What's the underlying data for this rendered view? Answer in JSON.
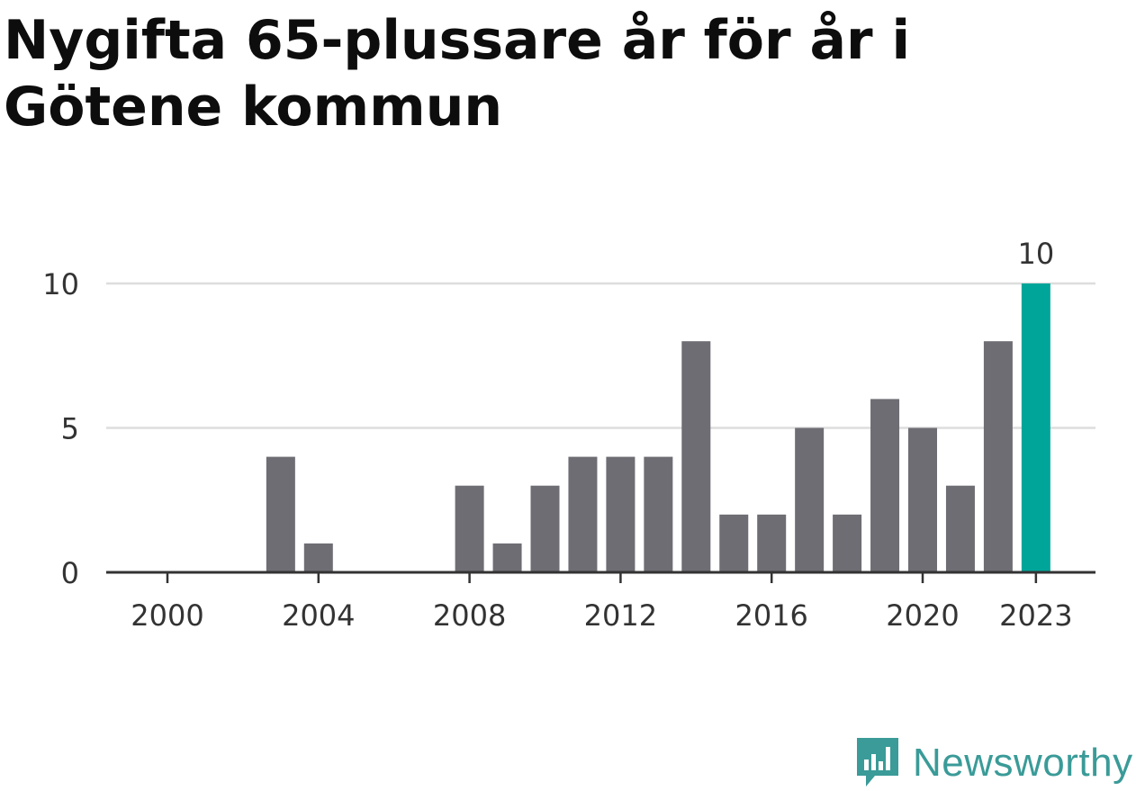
{
  "title": "Nygifta 65-plussare år för år i Götene kommun",
  "brand": "Newsworthy",
  "colors": {
    "bar": "#6e6d73",
    "highlight": "#00a59a",
    "grid": "#dddddd",
    "axis": "#333333",
    "brand": "#3a9b98"
  },
  "chart_data": {
    "type": "bar",
    "categories": [
      "2000",
      "2001",
      "2002",
      "2003",
      "2004",
      "2005",
      "2006",
      "2007",
      "2008",
      "2009",
      "2010",
      "2011",
      "2012",
      "2013",
      "2014",
      "2015",
      "2016",
      "2017",
      "2018",
      "2019",
      "2020",
      "2021",
      "2022",
      "2023"
    ],
    "values": [
      0,
      0,
      0,
      4,
      1,
      0,
      0,
      0,
      3,
      1,
      3,
      4,
      4,
      4,
      8,
      2,
      2,
      5,
      2,
      6,
      5,
      3,
      8,
      10
    ],
    "ylim": [
      0,
      10
    ],
    "yticks": [
      0,
      5,
      10
    ],
    "xtick_labels": [
      "2000",
      "2004",
      "2008",
      "2012",
      "2016",
      "2020",
      "2023"
    ],
    "highlight": {
      "category": "2023",
      "label": "10"
    },
    "grid": true,
    "legend": "none"
  }
}
